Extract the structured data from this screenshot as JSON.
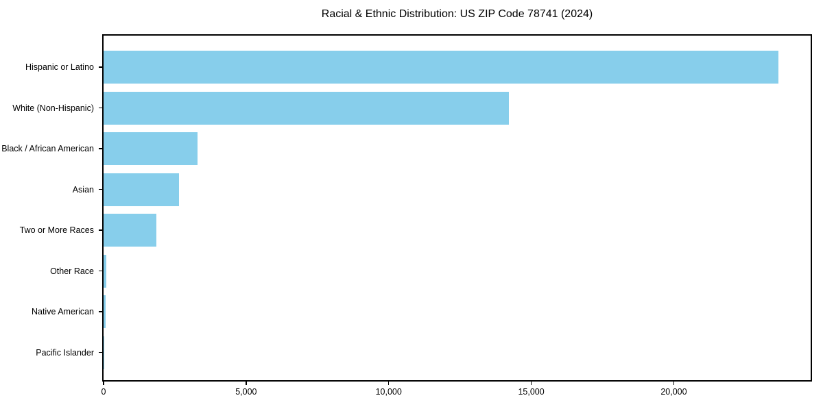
{
  "chart_data": {
    "type": "bar",
    "orientation": "horizontal",
    "title": "Racial & Ethnic Distribution: US ZIP Code 78741 (2024)",
    "categories": [
      "Hispanic or Latino",
      "White (Non-Hispanic)",
      "Black / African American",
      "Asian",
      "Two or More Races",
      "Other Race",
      "Native American",
      "Pacific Islander"
    ],
    "values": [
      23660,
      14210,
      3300,
      2650,
      1860,
      90,
      70,
      15
    ],
    "xlabel": "",
    "ylabel": "",
    "xlim": [
      0,
      24800
    ],
    "x_ticks": [
      0,
      5000,
      10000,
      15000,
      20000
    ],
    "x_tick_labels": [
      "0",
      "5,000",
      "10,000",
      "15,000",
      "20,000"
    ],
    "bar_color": "#87CEEB",
    "background_color": "#ffffff",
    "spine_color": "#000000",
    "text_color": "#000000",
    "grid": false,
    "legend": null
  }
}
